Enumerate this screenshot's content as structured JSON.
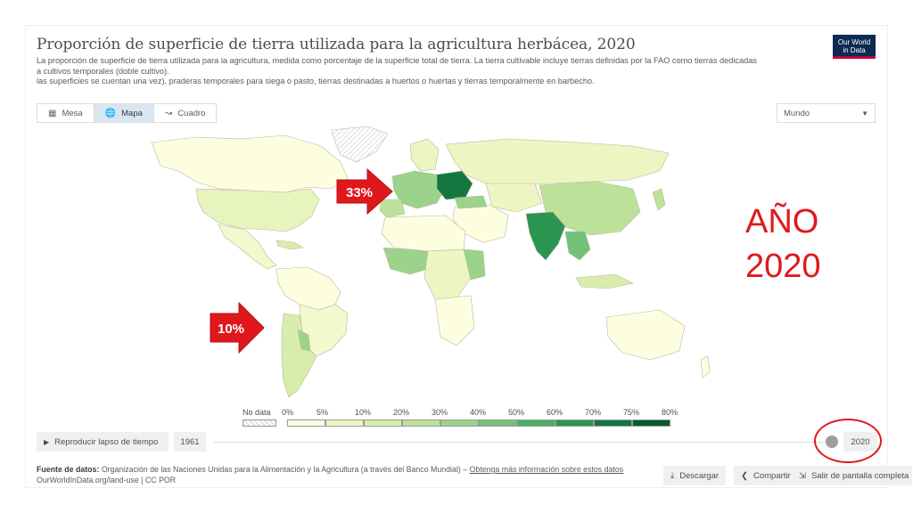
{
  "chart": {
    "title": "Proporción de superficie de tierra utilizada para la agricultura herbácea, 2020",
    "subtitle_lines": [
      "La proporción de superficie de tierra utilizada para la agricultura, medida como porcentaje de la superficie total de tierra. La tierra cultivable incluye tierras definidas por la FAO como tierras dedicadas",
      "a cultivos temporales (doble cultivo).",
      "las superficies se cuentan una vez), praderas temporales para siega o pasto, tierras destinadas a huertos o huertas y tierras temporalmente en barbecho."
    ]
  },
  "logo": {
    "line1": "Our World",
    "line2": "in Data"
  },
  "tabs": [
    {
      "label": "Mesa",
      "icon": "table-icon"
    },
    {
      "label": "Mapa",
      "icon": "globe-icon"
    },
    {
      "label": "Cuadro",
      "icon": "line-chart-icon"
    }
  ],
  "region_select": {
    "value": "Mundo"
  },
  "annotations": {
    "europe_callout": "33%",
    "south_america_callout": "10%",
    "year_line1": "AÑO",
    "year_line2": "2020"
  },
  "legend": {
    "no_data_label": "No data",
    "ticks": [
      "0%",
      "5%",
      "10%",
      "20%",
      "30%",
      "40%",
      "50%",
      "60%",
      "70%",
      "75%",
      "80%"
    ],
    "colors": [
      "#fdfde0",
      "#edf6c3",
      "#d8edac",
      "#bce29a",
      "#9bd38a",
      "#74c27a",
      "#4caf64",
      "#2c9451",
      "#13773f",
      "#075a2f"
    ]
  },
  "timeline": {
    "play_label": "Reproducir lapso de tiempo",
    "start_year": "1961",
    "end_year": "2020",
    "position": 1.0
  },
  "footer": {
    "source_label": "Fuente de datos:",
    "source_text": "Organización de las Naciones Unidas para la Alimentación y la Agricultura (a través del Banco Mundial)",
    "learn_more": "Obtenga más información sobre estos datos",
    "url_line": "OurWorldInData.org/land-use | CC POR",
    "download_label": "Descargar",
    "share_label": "Compartir",
    "fullscreen_label": "Salir de pantalla completa"
  },
  "colors": {
    "accent_red": "#e0181b",
    "logo_navy": "#0d2a52",
    "logo_red": "#c5003e"
  }
}
